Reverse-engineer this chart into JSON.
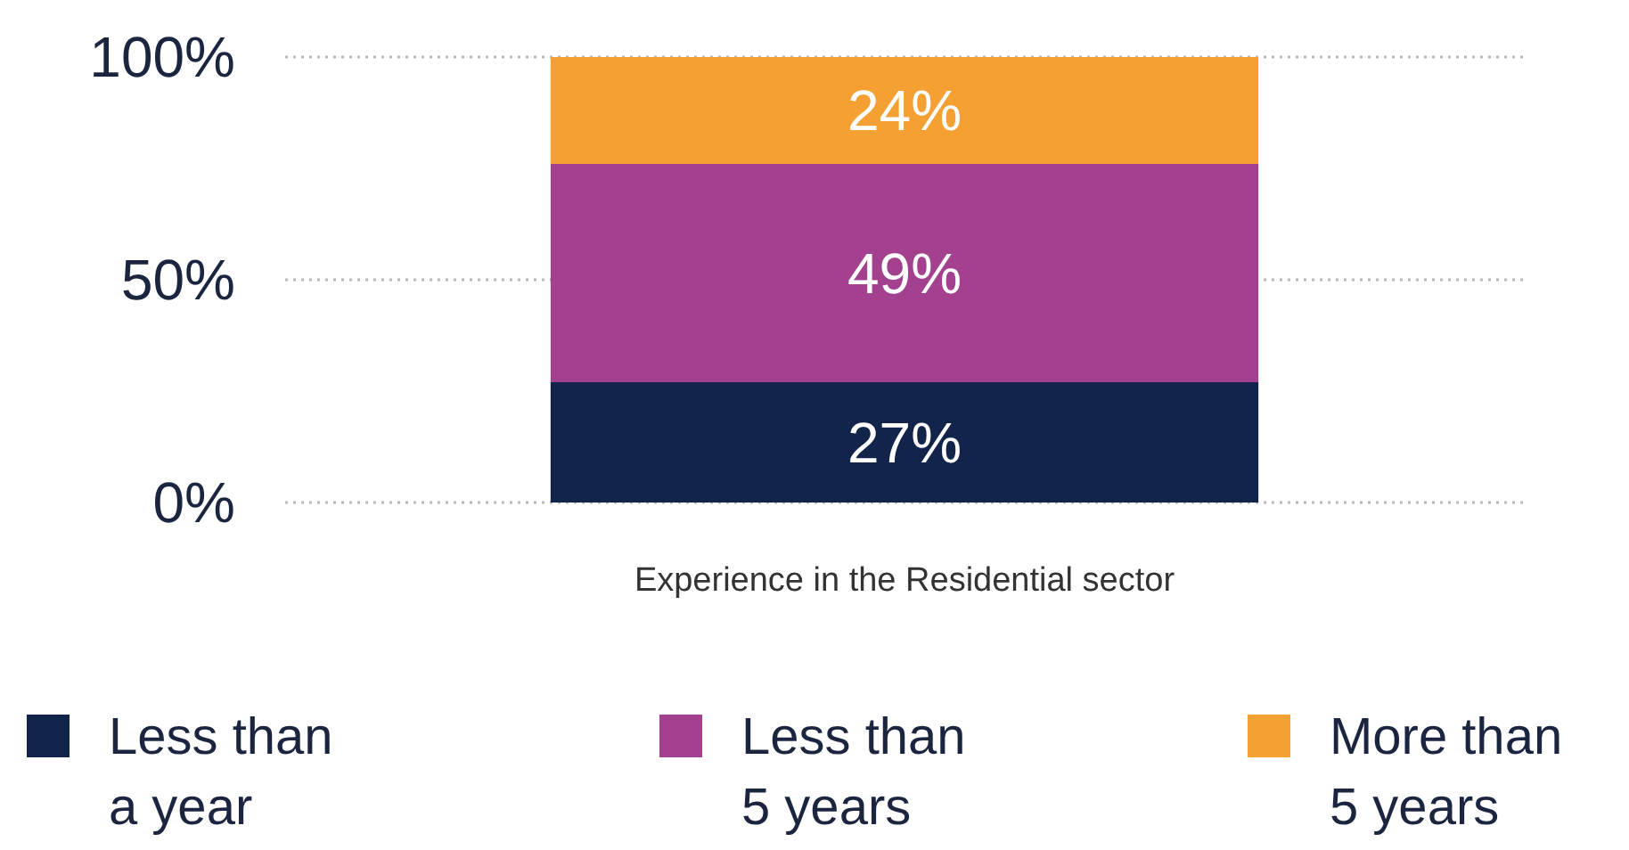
{
  "chart_data": {
    "type": "bar",
    "stacked": true,
    "categories": [
      "Experience in the Residential sector"
    ],
    "series": [
      {
        "name": "Less than a year",
        "color": "#13244a",
        "values": [
          27
        ],
        "value_labels": [
          "27%"
        ]
      },
      {
        "name": "Less than 5 years",
        "color": "#a3418f",
        "values": [
          49
        ],
        "value_labels": [
          "49%"
        ]
      },
      {
        "name": "More than 5 years",
        "color": "#f5a033",
        "values": [
          24
        ],
        "value_labels": [
          "24%"
        ]
      }
    ],
    "ylim": [
      0,
      100
    ],
    "yticks": [
      {
        "value": 0,
        "label": "0%"
      },
      {
        "value": 50,
        "label": "50%"
      },
      {
        "value": 100,
        "label": "100%"
      }
    ],
    "grid": "y",
    "legend": "bottom"
  }
}
